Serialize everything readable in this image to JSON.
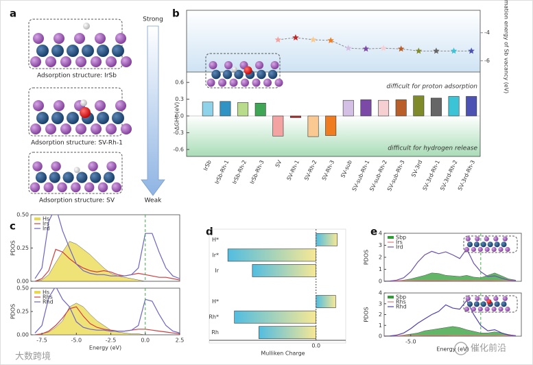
{
  "panel_labels": [
    "a",
    "b",
    "c",
    "d",
    "e"
  ],
  "panel_a": {
    "top": "Strong",
    "bottom": "Weak",
    "structures": [
      "Adsorption structure: IrSb",
      "Adsorption structure: SV-Rh-1",
      "Adsorption structure: SV"
    ]
  },
  "watermarks": [
    "大数跨境",
    "催化前沿"
  ],
  "chart_data": [
    {
      "type": "bar",
      "categories": [
        "IrSb",
        "IrSb-Rh-1",
        "IrSb-Rh-2",
        "IrSb-Rh-3",
        "SV",
        "SV-Rh-1",
        "SV-Rh-2",
        "SV-Rh-3",
        "SV-sub",
        "SV-sub-Rh-1",
        "SV-sub-Rh-2",
        "SV-sub-Rh-3",
        "SV-3rd",
        "SV-3rd-Rh-1",
        "SV-3rd-Rh-2",
        "SV-3rd-Rh-3"
      ],
      "values": [
        0.25,
        0.26,
        0.24,
        0.23,
        -0.36,
        -0.03,
        -0.37,
        -0.35,
        0.28,
        0.29,
        0.28,
        0.29,
        0.36,
        0.32,
        0.35,
        0.35
      ],
      "colors": [
        "#8fd3ea",
        "#2f93c4",
        "#b8db8c",
        "#3fa656",
        "#f4a3a3",
        "#c02828",
        "#f9c991",
        "#ef7d1f",
        "#d4c0e4",
        "#7a4aa6",
        "#f6cfd3",
        "#b9602a",
        "#7f8a2a",
        "#666666",
        "#3cc4d6",
        "#4c52b2"
      ],
      "ylabel": "ΔGH* (eV)",
      "ylim": [
        -0.7,
        0.7
      ],
      "yticks": [
        0.6,
        0.3,
        {
          "value": 0,
          "label": "0.0"
        },
        -0.3,
        -0.6
      ],
      "annotations": [
        "difficult for proton adsorption",
        "difficult for hydrogen release"
      ],
      "y2label": "Formation energy of Sb vacancy (eV)",
      "y2lim": [
        -6.8,
        -2.4
      ],
      "y2ticks": [
        -4,
        -6
      ],
      "y2values": [
        null,
        null,
        null,
        null,
        -4.5,
        -4.35,
        -4.5,
        -4.55,
        -5.1,
        -5.15,
        -5.1,
        -5.15,
        -5.3,
        -5.3,
        -5.3,
        -5.3
      ]
    },
    {
      "type": "line",
      "ylabel": "PDOS",
      "x": [
        -8,
        -7.5,
        -7,
        -6.5,
        -6,
        -5.5,
        -5,
        -4.5,
        -4,
        -3.5,
        -3,
        -2.5,
        -2,
        -1.5,
        -1,
        -0.5,
        0,
        0.5,
        1,
        1.5,
        2,
        2.5
      ],
      "series": [
        {
          "name": "Hs",
          "color": "#e9d84a",
          "fill": true,
          "values": [
            0,
            0.01,
            0.05,
            0.14,
            0.22,
            0.3,
            0.28,
            0.24,
            0.2,
            0.15,
            0.1,
            0.06,
            0.04,
            0.03,
            0.02,
            0.01,
            0,
            0,
            0,
            0,
            0,
            0
          ]
        },
        {
          "name": "Irs",
          "color": "#d03c3c",
          "values": [
            0,
            0.02,
            0.08,
            0.24,
            0.22,
            0.17,
            0.13,
            0.1,
            0.08,
            0.07,
            0.08,
            0.07,
            0.05,
            0.04,
            0.05,
            0.06,
            0.05,
            0.04,
            0.03,
            0.03,
            0.02,
            0.01
          ]
        },
        {
          "name": "Ird",
          "color": "#6a62c8",
          "values": [
            0.02,
            0.1,
            0.45,
            0.56,
            0.38,
            0.25,
            0.13,
            0.08,
            0.06,
            0.05,
            0.05,
            0.04,
            0.04,
            0.04,
            0.05,
            0.1,
            0.36,
            0.36,
            0.22,
            0.1,
            0.04,
            0.02
          ]
        }
      ],
      "xlim": [
        -8.3,
        2.5
      ],
      "ylim": [
        0,
        0.5
      ],
      "yticks": [
        {
          "value": 0,
          "label": "0.00"
        },
        0.25,
        {
          "value": 0.5,
          "label": "0.50"
        }
      ],
      "vline": 0
    },
    {
      "type": "line",
      "ylabel": "PDOS",
      "xlabel": "Energy (eV)",
      "x": [
        -8,
        -7.5,
        -7,
        -6.5,
        -6,
        -5.5,
        -5,
        -4.5,
        -4,
        -3.5,
        -3,
        -2.5,
        -2,
        -1.5,
        -1,
        -0.5,
        0,
        0.5,
        1,
        1.5,
        2,
        2.5
      ],
      "series": [
        {
          "name": "Hs",
          "color": "#e9d84a",
          "fill": true,
          "values": [
            0,
            0.01,
            0.03,
            0.08,
            0.15,
            0.3,
            0.34,
            0.3,
            0.22,
            0.15,
            0.1,
            0.05,
            0.03,
            0.02,
            0.01,
            0.01,
            0,
            0,
            0,
            0,
            0,
            0
          ]
        },
        {
          "name": "Rhs",
          "color": "#d03c3c",
          "values": [
            0,
            0.01,
            0.04,
            0.1,
            0.18,
            0.28,
            0.3,
            0.2,
            0.12,
            0.08,
            0.06,
            0.05,
            0.04,
            0.04,
            0.05,
            0.06,
            0.06,
            0.05,
            0.04,
            0.03,
            0.02,
            0.01
          ]
        },
        {
          "name": "Rhd",
          "color": "#6a62c8",
          "values": [
            0.02,
            0.1,
            0.4,
            0.52,
            0.38,
            0.3,
            0.14,
            0.08,
            0.06,
            0.05,
            0.05,
            0.04,
            0.04,
            0.04,
            0.05,
            0.1,
            0.38,
            0.36,
            0.22,
            0.1,
            0.04,
            0.02
          ]
        }
      ],
      "xlim": [
        -8.3,
        2.5
      ],
      "ylim": [
        0,
        0.5
      ],
      "xticks": [
        -7.5,
        {
          "value": -5,
          "label": "-5.0"
        },
        -2.5,
        {
          "value": 0,
          "label": "0.0"
        },
        2.5
      ],
      "yticks": [
        {
          "value": 0,
          "label": "0.00"
        },
        0.25,
        {
          "value": 0.5,
          "label": "0.50"
        }
      ],
      "vline": 0
    },
    {
      "type": "hbar",
      "xlabel": "Mulliken Charge",
      "categories": [
        "H*",
        "Ir*",
        "Ir",
        null,
        "H*",
        "Rh*",
        "Rh"
      ],
      "values": [
        0.13,
        -0.54,
        -0.39,
        null,
        0.12,
        -0.5,
        -0.35
      ],
      "colors": [
        "#52bde0",
        "#f7e894"
      ],
      "xlim": [
        -0.57,
        0.165
      ],
      "xticks": [
        {
          "value": 0,
          "label": "0.0"
        }
      ]
    },
    {
      "type": "line",
      "ylabel": "PDOS",
      "x": [
        -7,
        -6.5,
        -6,
        -5.5,
        -5,
        -4.5,
        -4,
        -3.5,
        -3,
        -2.5,
        -2,
        -1.5,
        -1,
        -0.5,
        0,
        0.5,
        1,
        1.5,
        2,
        2.5
      ],
      "series": [
        {
          "name": "Sbp",
          "color": "#2f9e35",
          "fill": true,
          "values": [
            0,
            0,
            0.05,
            0.1,
            0.2,
            0.35,
            0.5,
            0.7,
            0.65,
            0.5,
            0.45,
            0.4,
            0.5,
            0.35,
            0.3,
            0.5,
            0.7,
            0.45,
            0.2,
            0.1
          ]
        },
        {
          "name": "Irs",
          "color": "#e07a7a",
          "values": [
            0,
            0,
            0.02,
            0.04,
            0.05,
            0.06,
            0.08,
            0.08,
            0.07,
            0.06,
            0.05,
            0.05,
            0.06,
            0.05,
            0.05,
            0.06,
            0.05,
            0.04,
            0.03,
            0.02
          ]
        },
        {
          "name": "Ird",
          "color": "#6a50b0",
          "values": [
            0,
            0.02,
            0.1,
            0.3,
            0.8,
            1.6,
            2.2,
            2.5,
            2.3,
            2.45,
            2.2,
            1.9,
            2.7,
            1.5,
            0.8,
            0.4,
            0.45,
            0.25,
            0.1,
            0.05
          ]
        }
      ],
      "xlim": [
        -6.9,
        2.9
      ],
      "ylim": [
        0,
        4
      ],
      "yticks": [
        0,
        1,
        2,
        3,
        4
      ],
      "vline": 0
    },
    {
      "type": "line",
      "ylabel": "PDOS",
      "xlabel": "Energy (eV)",
      "x": [
        -7,
        -6.5,
        -6,
        -5.5,
        -5,
        -4.5,
        -4,
        -3.5,
        -3,
        -2.5,
        -2,
        -1.5,
        -1,
        -0.5,
        0,
        0.5,
        1,
        1.5,
        2,
        2.5
      ],
      "series": [
        {
          "name": "Sbp",
          "color": "#2f9e35",
          "fill": true,
          "values": [
            0,
            0,
            0.04,
            0.1,
            0.2,
            0.3,
            0.5,
            0.6,
            0.7,
            0.8,
            0.9,
            0.8,
            0.6,
            0.45,
            0.3,
            0.3,
            0.4,
            0.3,
            0.15,
            0.05
          ]
        },
        {
          "name": "Rhs",
          "color": "#e07a7a",
          "values": [
            0,
            0,
            0.02,
            0.03,
            0.05,
            0.06,
            0.07,
            0.08,
            0.08,
            0.07,
            0.06,
            0.06,
            0.07,
            0.05,
            0.05,
            0.05,
            0.05,
            0.04,
            0.03,
            0.02
          ]
        },
        {
          "name": "Rhd",
          "color": "#4e3fb0",
          "values": [
            0,
            0.02,
            0.1,
            0.3,
            0.7,
            1.2,
            1.6,
            2.0,
            2.3,
            2.9,
            2.6,
            2.5,
            3.3,
            2.0,
            1.0,
            0.5,
            0.6,
            0.3,
            0.1,
            0.05
          ]
        }
      ],
      "xlim": [
        -6.9,
        2.9
      ],
      "ylim": [
        0,
        4
      ],
      "yticks": [
        0,
        1,
        2,
        3,
        4
      ],
      "xticks": [
        {
          "value": -5,
          "label": "-5.0"
        }
      ],
      "vline": 0
    }
  ]
}
